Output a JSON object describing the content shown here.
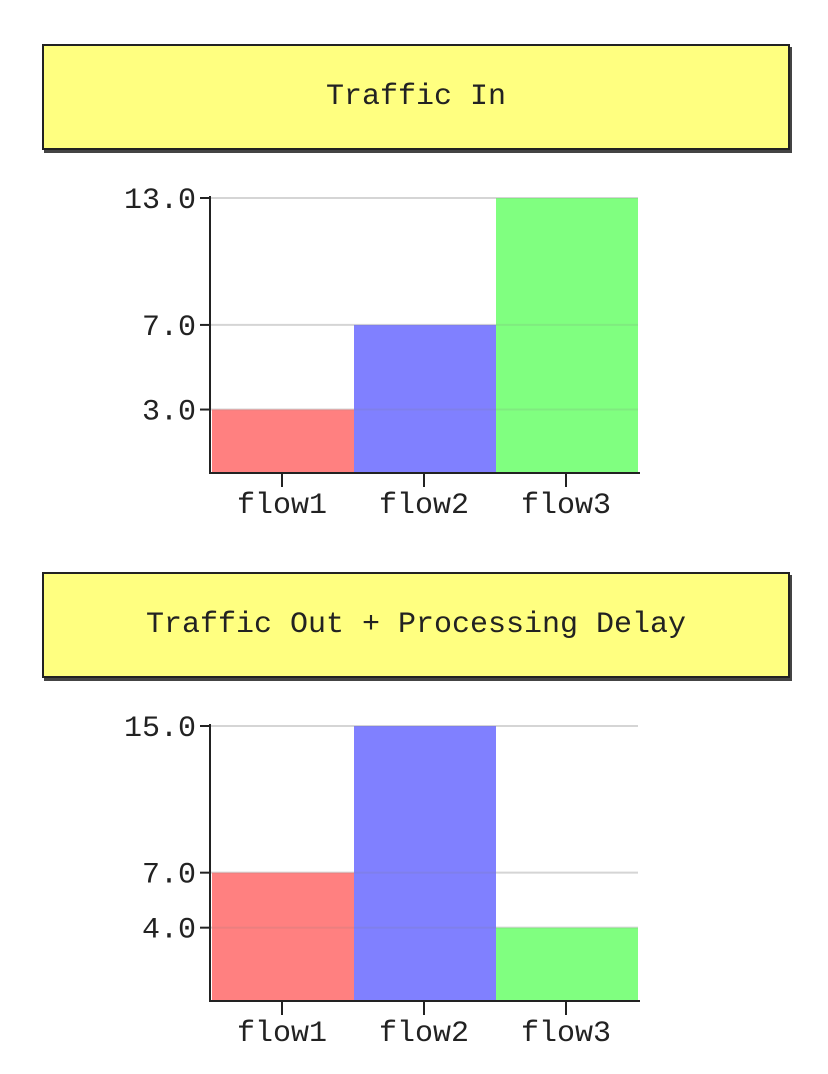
{
  "chart_data": [
    {
      "type": "bar",
      "title": "Traffic In",
      "categories": [
        "flow1",
        "flow2",
        "flow3"
      ],
      "values": [
        3.0,
        7.0,
        13.0
      ],
      "yticks": [
        "3.0",
        "7.0",
        "13.0"
      ],
      "ytick_values": [
        3.0,
        7.0,
        13.0
      ],
      "ylim": [
        0,
        13.0
      ],
      "colors": [
        "#ff8080",
        "#8080ff",
        "#80ff80"
      ],
      "grid": true,
      "xlabel": "",
      "ylabel": ""
    },
    {
      "type": "bar",
      "title": "Traffic Out + Processing Delay",
      "categories": [
        "flow1",
        "flow2",
        "flow3"
      ],
      "values": [
        7.0,
        15.0,
        4.0
      ],
      "yticks": [
        "4.0",
        "7.0",
        "15.0"
      ],
      "ytick_values": [
        4.0,
        7.0,
        15.0
      ],
      "ylim": [
        0,
        15.0
      ],
      "colors": [
        "#ff8080",
        "#8080ff",
        "#80ff80"
      ],
      "grid": true,
      "xlabel": "",
      "ylabel": ""
    }
  ]
}
